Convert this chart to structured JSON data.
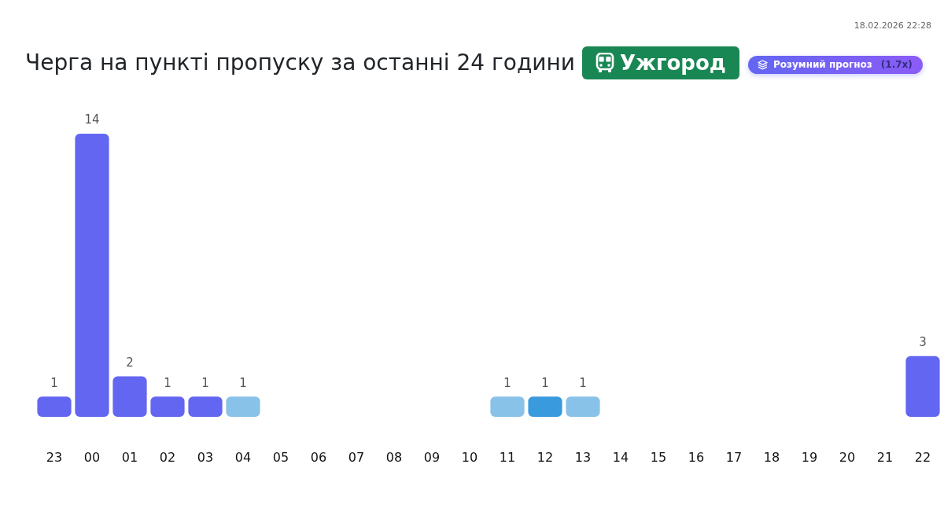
{
  "chart_data": {
    "type": "bar",
    "title": "Черга на пункті пропуску за останні 24 години",
    "subtitle": "Ужгород",
    "annotations": [
      "18.02.2026 22:28",
      "Розумний прогноз",
      "(1.7x)"
    ],
    "categories": [
      "23",
      "00",
      "01",
      "02",
      "03",
      "04",
      "05",
      "06",
      "07",
      "08",
      "09",
      "10",
      "11",
      "12",
      "13",
      "14",
      "15",
      "16",
      "17",
      "18",
      "19",
      "20",
      "21",
      "22"
    ],
    "values": [
      1,
      14,
      2,
      1,
      1,
      1,
      null,
      null,
      null,
      null,
      null,
      null,
      1,
      1,
      1,
      null,
      null,
      null,
      null,
      null,
      null,
      null,
      null,
      3
    ],
    "colors": [
      "#6366f1",
      "#6366f1",
      "#6366f1",
      "#6366f1",
      "#6366f1",
      "#89c2e9",
      null,
      null,
      null,
      null,
      null,
      null,
      "#89c2e9",
      "#3a9ade",
      "#89c2e9",
      null,
      null,
      null,
      null,
      null,
      null,
      null,
      null,
      "#6366f1"
    ],
    "data_labels": true,
    "tick_labels": "x"
  }
}
